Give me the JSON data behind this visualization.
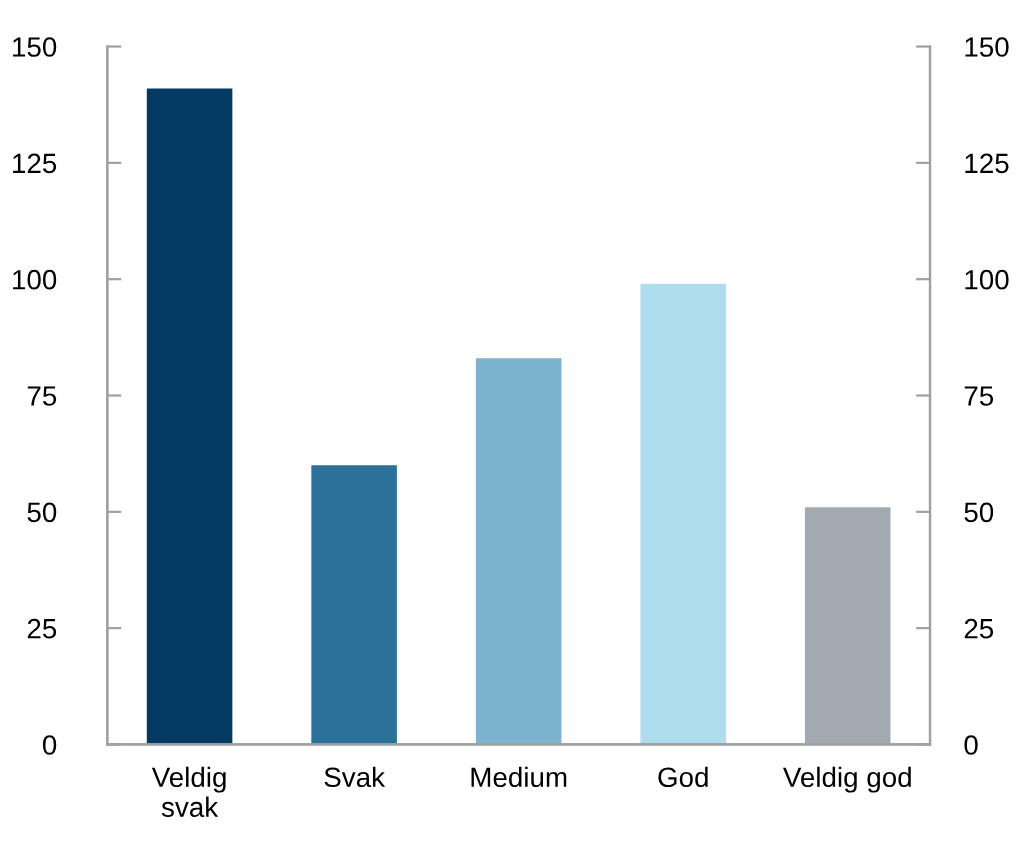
{
  "chart_data": {
    "type": "bar",
    "categories": [
      "Veldig\nsvak",
      "Svak",
      "Medium",
      "God",
      "Veldig god"
    ],
    "values": [
      141,
      60,
      83,
      99,
      51
    ],
    "colors": [
      "#033a64",
      "#2c7199",
      "#7db3cf",
      "#aeddee",
      "#a3a9b0"
    ],
    "ylim": [
      0,
      150
    ],
    "yticks": [
      0,
      25,
      50,
      75,
      100,
      125,
      150
    ],
    "y2lim": [
      0,
      150
    ],
    "y2ticks": [
      0,
      25,
      50,
      75,
      100,
      125,
      150
    ],
    "grid": false,
    "legend": false
  }
}
